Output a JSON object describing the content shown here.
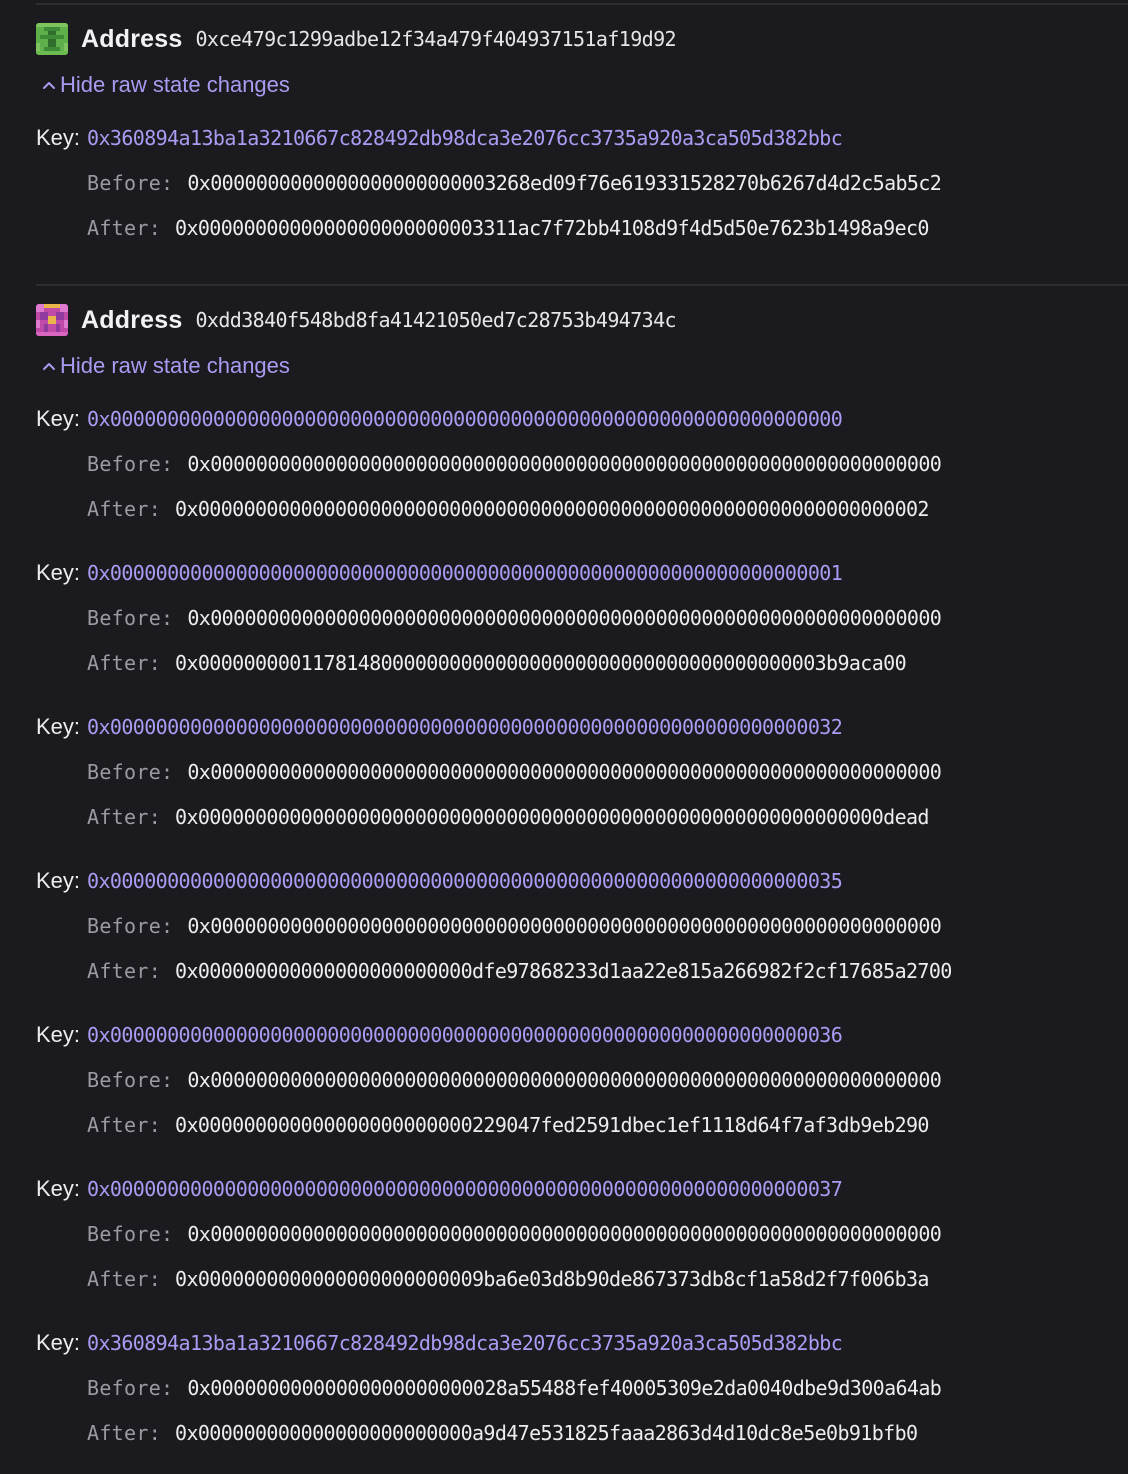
{
  "accounts": [
    {
      "address_label": "Address",
      "address": "0xce479c1299adbe12f34a479f404937151af19d92",
      "avatar_icon": "green-identicon",
      "toggle_label": "Hide raw state changes",
      "changes": [
        {
          "key_label": "Key:",
          "key": "0x360894a13ba1a3210667c828492db98dca3e2076cc3735a920a3ca505d382bbc",
          "before_label": "Before:",
          "before": "0x0000000000000000000000003268ed09f76e619331528270b6267d4d2c5ab5c2",
          "after_label": "After:",
          "after": "0x0000000000000000000000003311ac7f72bb4108d9f4d5d50e7623b1498a9ec0"
        }
      ]
    },
    {
      "address_label": "Address",
      "address": "0xdd3840f548bd8fa41421050ed7c28753b494734c",
      "avatar_icon": "magenta-identicon",
      "toggle_label": "Hide raw state changes",
      "changes": [
        {
          "key_label": "Key:",
          "key": "0x0000000000000000000000000000000000000000000000000000000000000000",
          "before_label": "Before:",
          "before": "0x0000000000000000000000000000000000000000000000000000000000000000",
          "after_label": "After:",
          "after": "0x0000000000000000000000000000000000000000000000000000000000000002"
        },
        {
          "key_label": "Key:",
          "key": "0x0000000000000000000000000000000000000000000000000000000000000001",
          "before_label": "Before:",
          "before": "0x0000000000000000000000000000000000000000000000000000000000000000",
          "after_label": "After:",
          "after": "0x0000000001178148000000000000000000000000000000000000003b9aca00"
        },
        {
          "key_label": "Key:",
          "key": "0x0000000000000000000000000000000000000000000000000000000000000032",
          "before_label": "Before:",
          "before": "0x0000000000000000000000000000000000000000000000000000000000000000",
          "after_label": "After:",
          "after": "0x000000000000000000000000000000000000000000000000000000000000dead"
        },
        {
          "key_label": "Key:",
          "key": "0x0000000000000000000000000000000000000000000000000000000000000035",
          "before_label": "Before:",
          "before": "0x0000000000000000000000000000000000000000000000000000000000000000",
          "after_label": "After:",
          "after": "0x000000000000000000000000dfe97868233d1aa22e815a266982f2cf17685a2700"
        },
        {
          "key_label": "Key:",
          "key": "0x0000000000000000000000000000000000000000000000000000000000000036",
          "before_label": "Before:",
          "before": "0x0000000000000000000000000000000000000000000000000000000000000000",
          "after_label": "After:",
          "after": "0x000000000000000000000000229047fed2591dbec1ef1118d64f7af3db9eb290"
        },
        {
          "key_label": "Key:",
          "key": "0x0000000000000000000000000000000000000000000000000000000000000037",
          "before_label": "Before:",
          "before": "0x0000000000000000000000000000000000000000000000000000000000000000",
          "after_label": "After:",
          "after": "0x0000000000000000000000009ba6e03d8b90de867373db8cf1a58d2f7f006b3a"
        },
        {
          "key_label": "Key:",
          "key": "0x360894a13ba1a3210667c828492db98dca3e2076cc3735a920a3ca505d382bbc",
          "before_label": "Before:",
          "before": "0x00000000000000000000000028a55488fef40005309e2da0040dbe9d300a64ab",
          "after_label": "After:",
          "after": "0x000000000000000000000000a9d47e531825faaa2863d4d10dc8e5e0b91bfb0"
        }
      ]
    }
  ]
}
